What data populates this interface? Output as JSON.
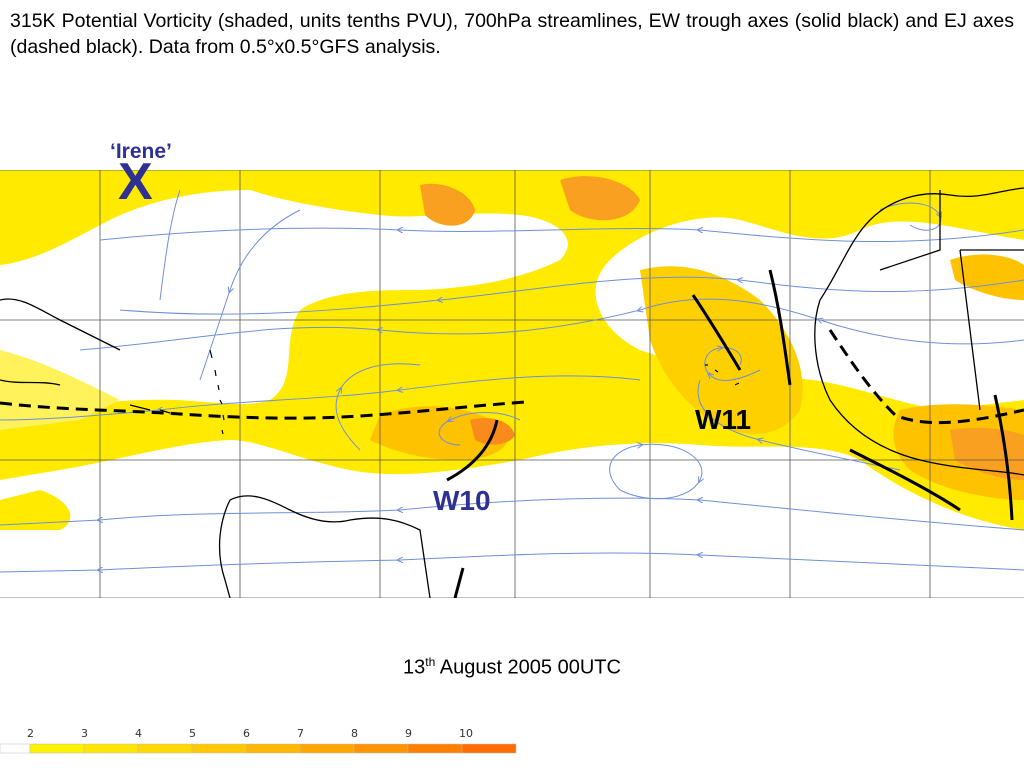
{
  "caption": "315K Potential Vorticity (shaded, units tenths PVU), 700hPa streamlines, EW trough axes (solid black) and EJ axes (dashed black). Data from 0.5°x0.5°GFS analysis.",
  "labels": {
    "irene": "‘Irene’",
    "irene_marker": "X",
    "w11": "W11",
    "w10": "W10"
  },
  "date": {
    "day": "13",
    "suffix": "th",
    "rest": " August 2005 00UTC"
  },
  "colorbar": {
    "ticks": [
      "2",
      "3",
      "4",
      "5",
      "6",
      "7",
      "8",
      "9",
      "10"
    ],
    "colors": [
      "#ffffff",
      "#fff200",
      "#ffe600",
      "#ffd800",
      "#ffc800",
      "#ffb800",
      "#ffa600",
      "#ff9400",
      "#ff8000",
      "#ff6c00"
    ]
  },
  "colors": {
    "label_blue": "#2e3192",
    "streamline": "#6f8fd8",
    "pv_light": "#ffea00",
    "pv_mid": "#ffc400",
    "pv_dark": "#f98a1c"
  }
}
